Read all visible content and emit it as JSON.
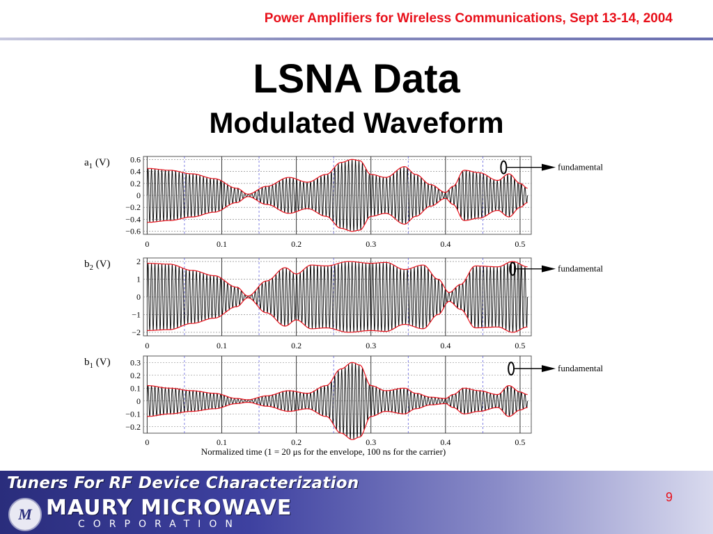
{
  "header": {
    "title": "Power Amplifiers for Wireless Communications, Sept 13-14, 2004"
  },
  "slide": {
    "title": "LSNA Data",
    "subtitle": "Modulated Waveform"
  },
  "chart_data": [
    {
      "type": "line",
      "ylabel_main": "a",
      "ylabel_sub": "1",
      "ylabel_unit": " (V)",
      "yticks": [
        0.6,
        0.4,
        0.2,
        0,
        -0.2,
        -0.4,
        -0.6
      ],
      "yticklabels": [
        "0.6",
        "0.4",
        "0.2",
        "0",
        "−0.2",
        "−0.4",
        "−0.6"
      ],
      "ylim": [
        -0.65,
        0.65
      ],
      "xticks": [
        0,
        0.1,
        0.2,
        0.3,
        0.4,
        0.5
      ],
      "xticklabels": [
        "0",
        "0.1",
        "0.2",
        "0.3",
        "0.4",
        "0.5"
      ],
      "xlim": [
        -0.005,
        0.515
      ],
      "annotation": "fundamental",
      "annotation_x": 0.478,
      "envelope_x": [
        0,
        0.03,
        0.06,
        0.09,
        0.12,
        0.135,
        0.16,
        0.19,
        0.215,
        0.24,
        0.26,
        0.275,
        0.285,
        0.3,
        0.32,
        0.345,
        0.36,
        0.38,
        0.4,
        0.41,
        0.425,
        0.445,
        0.47,
        0.485,
        0.5,
        0.51
      ],
      "envelope_y": [
        0.45,
        0.42,
        0.36,
        0.28,
        0.12,
        0.02,
        0.15,
        0.3,
        0.22,
        0.35,
        0.55,
        0.6,
        0.58,
        0.35,
        0.3,
        0.48,
        0.35,
        0.18,
        0.05,
        0.15,
        0.42,
        0.38,
        0.25,
        0.36,
        0.2,
        0.12
      ]
    },
    {
      "type": "line",
      "ylabel_main": "b",
      "ylabel_sub": "2",
      "ylabel_unit": " (V)",
      "yticks": [
        2,
        1,
        0,
        -1,
        -2
      ],
      "yticklabels": [
        "2",
        "1",
        "0",
        "−1",
        "−2"
      ],
      "ylim": [
        -2.2,
        2.2
      ],
      "xticks": [
        0,
        0.1,
        0.2,
        0.3,
        0.4,
        0.5
      ],
      "xticklabels": [
        "0",
        "0.1",
        "0.2",
        "0.3",
        "0.4",
        "0.5"
      ],
      "xlim": [
        -0.005,
        0.515
      ],
      "annotation": "fundamental",
      "annotation_x": 0.49,
      "envelope_x": [
        0,
        0.03,
        0.06,
        0.09,
        0.12,
        0.135,
        0.16,
        0.185,
        0.2,
        0.22,
        0.24,
        0.27,
        0.3,
        0.32,
        0.345,
        0.37,
        0.39,
        0.405,
        0.42,
        0.44,
        0.47,
        0.49,
        0.51
      ],
      "envelope_y": [
        1.9,
        1.85,
        1.5,
        1.2,
        0.55,
        0.05,
        0.9,
        1.65,
        1.3,
        1.8,
        1.75,
        2.0,
        1.9,
        1.95,
        1.55,
        1.8,
        1.0,
        0.25,
        0.7,
        1.75,
        1.7,
        2.0,
        1.7
      ]
    },
    {
      "type": "line",
      "ylabel_main": "b",
      "ylabel_sub": "1",
      "ylabel_unit": " (V)",
      "yticks": [
        0.3,
        0.2,
        0.1,
        0,
        -0.1,
        -0.2
      ],
      "yticklabels": [
        "0.3",
        "0.2",
        "0.1",
        "0",
        "−0.1",
        "−0.2"
      ],
      "ylim": [
        -0.25,
        0.35
      ],
      "xticks": [
        0,
        0.1,
        0.2,
        0.3,
        0.4,
        0.5
      ],
      "xticklabels": [
        "0",
        "0.1",
        "0.2",
        "0.3",
        "0.4",
        "0.5"
      ],
      "xlim": [
        -0.005,
        0.515
      ],
      "xlabel": "Normalized time (1 = 20 μs for the envelope, 100 ns for the carrier)",
      "annotation": "fundamental",
      "annotation_x": 0.488,
      "envelope_x": [
        0,
        0.03,
        0.06,
        0.09,
        0.12,
        0.135,
        0.16,
        0.19,
        0.215,
        0.24,
        0.26,
        0.275,
        0.285,
        0.3,
        0.32,
        0.345,
        0.36,
        0.38,
        0.4,
        0.41,
        0.425,
        0.445,
        0.47,
        0.485,
        0.5,
        0.51
      ],
      "envelope_y": [
        0.12,
        0.1,
        0.08,
        0.06,
        0.02,
        0.01,
        0.04,
        0.08,
        0.06,
        0.12,
        0.25,
        0.3,
        0.28,
        0.12,
        0.08,
        0.1,
        0.06,
        0.03,
        0.02,
        0.05,
        0.1,
        0.08,
        0.05,
        0.12,
        0.07,
        0.05
      ]
    }
  ],
  "footer": {
    "tagline": "Tuners For RF Device Characterization",
    "logo": "M",
    "company": "MAURY MICROWAVE",
    "corp": "CORPORATION",
    "page_number": "9"
  },
  "colors": {
    "header_text": "#e8101a",
    "envelope": "#e8101a",
    "waveform": "#000000",
    "grid_dashed": "#4a4ad8",
    "footer_dark": "#2a2d7c"
  }
}
